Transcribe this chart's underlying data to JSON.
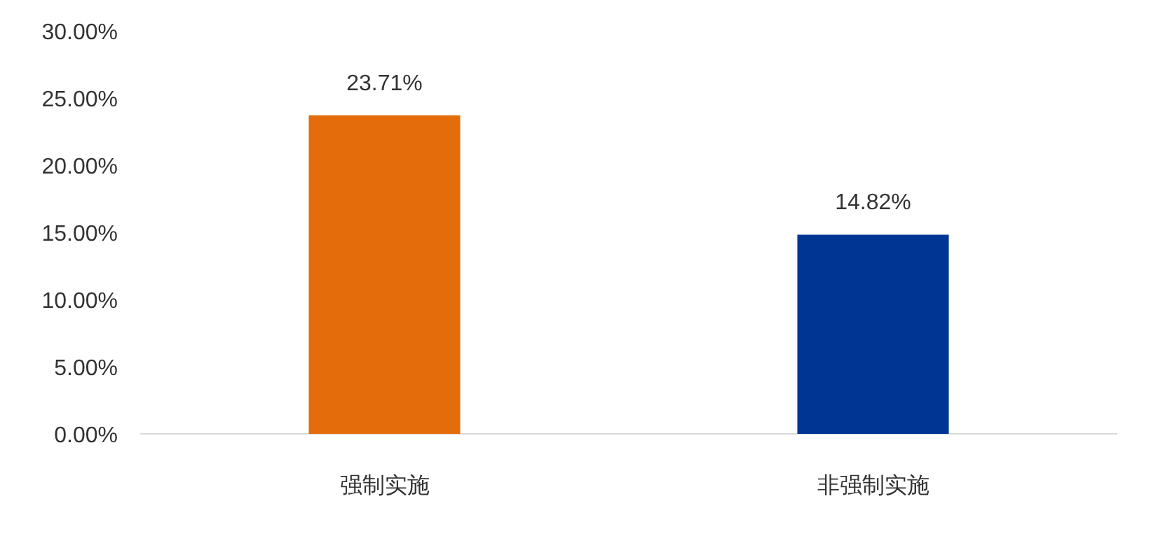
{
  "chart_data": {
    "type": "bar",
    "categories": [
      "强制实施",
      "非强制实施"
    ],
    "values": [
      23.71,
      14.82
    ],
    "colors": [
      "#e46c0a",
      "#003594"
    ],
    "value_labels": [
      "23.71%",
      "14.82%"
    ],
    "ylim": [
      0,
      30
    ],
    "yticks": [
      {
        "value": 0,
        "label": "0.00%"
      },
      {
        "value": 5,
        "label": "5.00%"
      },
      {
        "value": 10,
        "label": "10.00%"
      },
      {
        "value": 15,
        "label": "15.00%"
      },
      {
        "value": 20,
        "label": "20.00%"
      },
      {
        "value": 25,
        "label": "25.00%"
      },
      {
        "value": 30,
        "label": "30.00%"
      }
    ],
    "grid": false
  }
}
